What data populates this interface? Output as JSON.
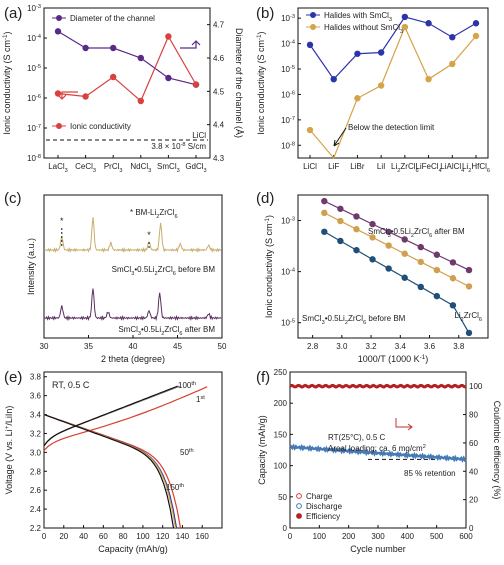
{
  "chart_data": [
    {
      "panel": "(a)",
      "type": "line",
      "categories": [
        "LaCl3",
        "CeCl3",
        "PrCl3",
        "NdCl3",
        "SmCl3",
        "GdCl3"
      ],
      "category_labels": [
        {
          "base": "LaCl",
          "sub": "3"
        },
        {
          "base": "CeCl",
          "sub": "3"
        },
        {
          "base": "PrCl",
          "sub": "3"
        },
        {
          "base": "NdCl",
          "sub": "3"
        },
        {
          "base": "SmCl",
          "sub": "3"
        },
        {
          "base": "GdCl",
          "sub": "3"
        }
      ],
      "ylabel": {
        "text": "Ionic conductivity (S cm",
        "sup": "-1",
        "end": ")"
      },
      "y2label": "Diameter of the channel (Å)",
      "yscale": "log",
      "ylim_exp": [
        -8,
        -3
      ],
      "y_ticks": [
        {
          "base": "10",
          "sup": "-8"
        },
        {
          "base": "10",
          "sup": "-7"
        },
        {
          "base": "10",
          "sup": "-6"
        },
        {
          "base": "10",
          "sup": "-5"
        },
        {
          "base": "10",
          "sup": "-4"
        },
        {
          "base": "10",
          "sup": "-3"
        }
      ],
      "y2lim": [
        4.3,
        4.75
      ],
      "y2_ticks": [
        "4.3",
        "4.4",
        "4.5",
        "4.6",
        "4.7"
      ],
      "series": [
        {
          "name": "Diameter of the channel",
          "axis": "right",
          "color": "#5b2a86",
          "values": [
            4.68,
            4.63,
            4.63,
            4.6,
            4.54,
            4.52
          ]
        },
        {
          "name": "Ionic conductivity",
          "axis": "left",
          "color": "#d94040",
          "values_exp": [
            -5.85,
            -5.95,
            -5.3,
            -6.1,
            -3.95,
            -5.55
          ]
        }
      ],
      "reference": {
        "name": "LiCl",
        "value_text": "3.8 × 10",
        "value_sup": "-8",
        "value_unit": " S/cm",
        "value_exp": -7.4
      }
    },
    {
      "panel": "(b)",
      "type": "line",
      "categories": [
        "LiCl",
        "LiF",
        "LiBr",
        "LiI",
        "Li2ZrCl6",
        "LiFeCl4",
        "LiAlCl4",
        "Li2HfCl6"
      ],
      "category_labels": [
        {
          "base": "LiCl",
          "sub": ""
        },
        {
          "base": "LiF",
          "sub": ""
        },
        {
          "base": "LiBr",
          "sub": ""
        },
        {
          "base": "LiI",
          "sub": ""
        },
        {
          "base": "Li",
          "sub": "2",
          "rest": "ZrCl",
          "sub2": "6"
        },
        {
          "base": "LiFeCl",
          "sub": "4"
        },
        {
          "base": "LiAlCl",
          "sub": "4"
        },
        {
          "base": "Li",
          "sub": "2",
          "rest": "HfCl",
          "sub2": "6"
        }
      ],
      "ylabel": {
        "text": "Ionic conductivity (S cm",
        "sup": "-1",
        "end": ")"
      },
      "yscale": "log",
      "ylim_exp": [
        -8.5,
        -2.6
      ],
      "y_ticks": [
        {
          "base": "10",
          "sup": "-8"
        },
        {
          "base": "10",
          "sup": "-7"
        },
        {
          "base": "10",
          "sup": "-6"
        },
        {
          "base": "10",
          "sup": "-5"
        },
        {
          "base": "10",
          "sup": "-4"
        },
        {
          "base": "10",
          "sup": "-3"
        }
      ],
      "series": [
        {
          "name": "Halides with SmCl3",
          "legend": {
            "text": "Halides with SmCl",
            "sub": "3"
          },
          "color": "#2b35a8",
          "values_exp": [
            -4.05,
            -5.4,
            -4.4,
            -4.35,
            -2.95,
            -3.2,
            -3.75,
            -3.2
          ]
        },
        {
          "name": "Halides without SmCl3",
          "legend": {
            "text": "Halides without SmCl",
            "sub": "3"
          },
          "color": "#d4a447",
          "values_exp": [
            -7.4,
            -8.6,
            -6.15,
            -5.65,
            -3.35,
            -5.4,
            -4.8,
            -3.7
          ]
        }
      ],
      "annotation": "Below the detection limit"
    },
    {
      "panel": "(c)",
      "type": "line",
      "xlabel": "2 theta (degree)",
      "ylabel": "Intensity (a.u.)",
      "xlim": [
        30,
        50
      ],
      "x_ticks": [
        30,
        35,
        40,
        45,
        50
      ],
      "series": [
        {
          "name": "SmCl3•0.5Li2ZrCl6 before BM",
          "label": {
            "parts": [
              "SmCl",
              "3",
              "•0.5Li",
              "2",
              "ZrCl",
              "6",
              " before BM"
            ]
          },
          "color": "#c9ad6c",
          "offset": 1.0,
          "peaks": [
            [
              32.0,
              0.22
            ],
            [
              35.5,
              0.55
            ],
            [
              37.5,
              0.12
            ],
            [
              41.8,
              0.14
            ],
            [
              43.1,
              0.45
            ],
            [
              45.3,
              0.1
            ],
            [
              48.5,
              0.08
            ]
          ]
        },
        {
          "name": "SmCl3•0.5Li2ZrCl6 after BM",
          "label": {
            "parts": [
              "SmCl",
              "3",
              "•0.5Li",
              "2",
              "ZrCl",
              "6",
              " after BM"
            ]
          },
          "color": "#5a2f5e",
          "offset": 0.0,
          "peaks": [
            [
              32.0,
              0.2
            ],
            [
              35.5,
              0.5
            ],
            [
              37.2,
              0.1
            ],
            [
              41.8,
              0.12
            ],
            [
              43.0,
              0.42
            ],
            [
              48.5,
              0.07
            ]
          ]
        }
      ],
      "markers": [
        {
          "x": 32.0,
          "symbol": "*"
        },
        {
          "x": 41.8,
          "symbol": "*"
        }
      ],
      "legend": {
        "text": "* BM-Li",
        "sub": "2",
        "rest": "ZrCl",
        "sub2": "6"
      }
    },
    {
      "panel": "(d)",
      "type": "scatter",
      "xlabel": {
        "text": "1000/T (1000 K",
        "sup": "-1",
        "end": ")"
      },
      "ylabel": {
        "text": "Ionic conductivity (S cm",
        "sup": "-1",
        "end": ")"
      },
      "xlim": [
        2.7,
        4.0
      ],
      "x_ticks": [
        "2.8",
        "3.0",
        "3.2",
        "3.4",
        "3.6",
        "3.8"
      ],
      "yscale": "log",
      "ylim_exp": [
        -5.3,
        -2.5
      ],
      "y_ticks": [
        {
          "base": "10",
          "sup": "-5"
        },
        {
          "base": "10",
          "sup": "-4"
        },
        {
          "base": "10",
          "sup": "-3"
        }
      ],
      "x": [
        2.88,
        2.99,
        3.1,
        3.21,
        3.32,
        3.43,
        3.54,
        3.65,
        3.76,
        3.87
      ],
      "series": [
        {
          "name": "SmCl3•0.5Li2ZrCl6 after BM",
          "label": {
            "parts": [
              "SmCl",
              "3",
              "•0.5Li",
              "2",
              "ZrCl",
              "6",
              " after BM"
            ]
          },
          "color": "#6e3a6e",
          "values_exp": [
            -2.62,
            -2.77,
            -2.92,
            -3.07,
            -3.22,
            -3.37,
            -3.52,
            -3.67,
            -3.82,
            -3.97
          ]
        },
        {
          "name": "Li2ZrCl6",
          "label": {
            "parts": [
              "Li",
              "2",
              "ZrCl",
              "6"
            ]
          },
          "color": "#d0a050",
          "values_exp": [
            -2.85,
            -3.01,
            -3.17,
            -3.33,
            -3.49,
            -3.65,
            -3.81,
            -3.97,
            -4.13,
            -4.29
          ]
        },
        {
          "name": "SmCl3•0.5Li2ZrCl6 before BM",
          "label": {
            "parts": [
              "SmCl",
              "3",
              "•0.5Li",
              "2",
              "ZrCl",
              "6",
              " before BM"
            ]
          },
          "color": "#1f4e79",
          "values_exp": [
            -3.22,
            -3.4,
            -3.58,
            -3.76,
            -3.94,
            -4.12,
            -4.3,
            -4.48,
            -4.66,
            -5.2
          ]
        }
      ]
    },
    {
      "panel": "(e)",
      "type": "line",
      "xlabel": "Capacity (mAh/g)",
      "ylabel": {
        "text": "Voltage (V vs. Li",
        "sup": "+",
        "end": "/LiIn)"
      },
      "xlim": [
        0,
        180
      ],
      "x_ticks": [
        "0",
        "20",
        "40",
        "60",
        "80",
        "100",
        "120",
        "140",
        "160"
      ],
      "ylim": [
        2.2,
        3.85
      ],
      "y_ticks": [
        "2.2",
        "2.4",
        "2.6",
        "2.8",
        "3.0",
        "3.2",
        "3.4",
        "3.6",
        "3.8"
      ],
      "condition": "RT, 0.5 C",
      "series": [
        {
          "name": "1st",
          "label": {
            "num": "1",
            "sup": "st"
          },
          "color": "#d94030",
          "charge_end": [
            165,
            3.7
          ],
          "discharge_end": [
            138,
            2.2
          ]
        },
        {
          "name": "50th",
          "label": {
            "num": "50",
            "sup": "th"
          },
          "color": "#2b35a8",
          "charge_end": [
            137,
            3.7
          ],
          "discharge_end": [
            134,
            2.2
          ]
        },
        {
          "name": "100th",
          "label": {
            "num": "100",
            "sup": "th"
          },
          "color": "#d4a447",
          "charge_end": [
            136,
            3.7
          ],
          "discharge_end": [
            133,
            2.2
          ]
        },
        {
          "name": "150th",
          "label": {
            "num": "150",
            "sup": "th"
          },
          "color": "#111111",
          "charge_end": [
            135,
            3.7
          ],
          "discharge_end": [
            131,
            2.2
          ]
        }
      ]
    },
    {
      "panel": "(f)",
      "type": "scatter",
      "xlabel": "Cycle number",
      "ylabel": "Capacity (mAh/g)",
      "y2label": "Coulombic efficiency (%)",
      "xlim": [
        0,
        600
      ],
      "x_ticks": [
        "0",
        "100",
        "200",
        "300",
        "400",
        "500",
        "600"
      ],
      "ylim": [
        0,
        250
      ],
      "y_ticks": [
        "0",
        "50",
        "100",
        "150",
        "200",
        "250"
      ],
      "y2lim": [
        0,
        110
      ],
      "y2_ticks": [
        "0",
        "20",
        "40",
        "60",
        "80",
        "100"
      ],
      "annotations": [
        "RT(25°C), 0.5 C",
        "Areal loading: ca. 6 mg/cm",
        "85 % retention"
      ],
      "areal_sup": "2",
      "capacity_start": 130,
      "capacity_end": 110,
      "efficiency": 100,
      "series": [
        {
          "name": "Charge",
          "color": "#d94040"
        },
        {
          "name": "Discharge",
          "color": "#3a7fc0"
        },
        {
          "name": "Efficiency",
          "color": "#b22222"
        }
      ]
    }
  ]
}
